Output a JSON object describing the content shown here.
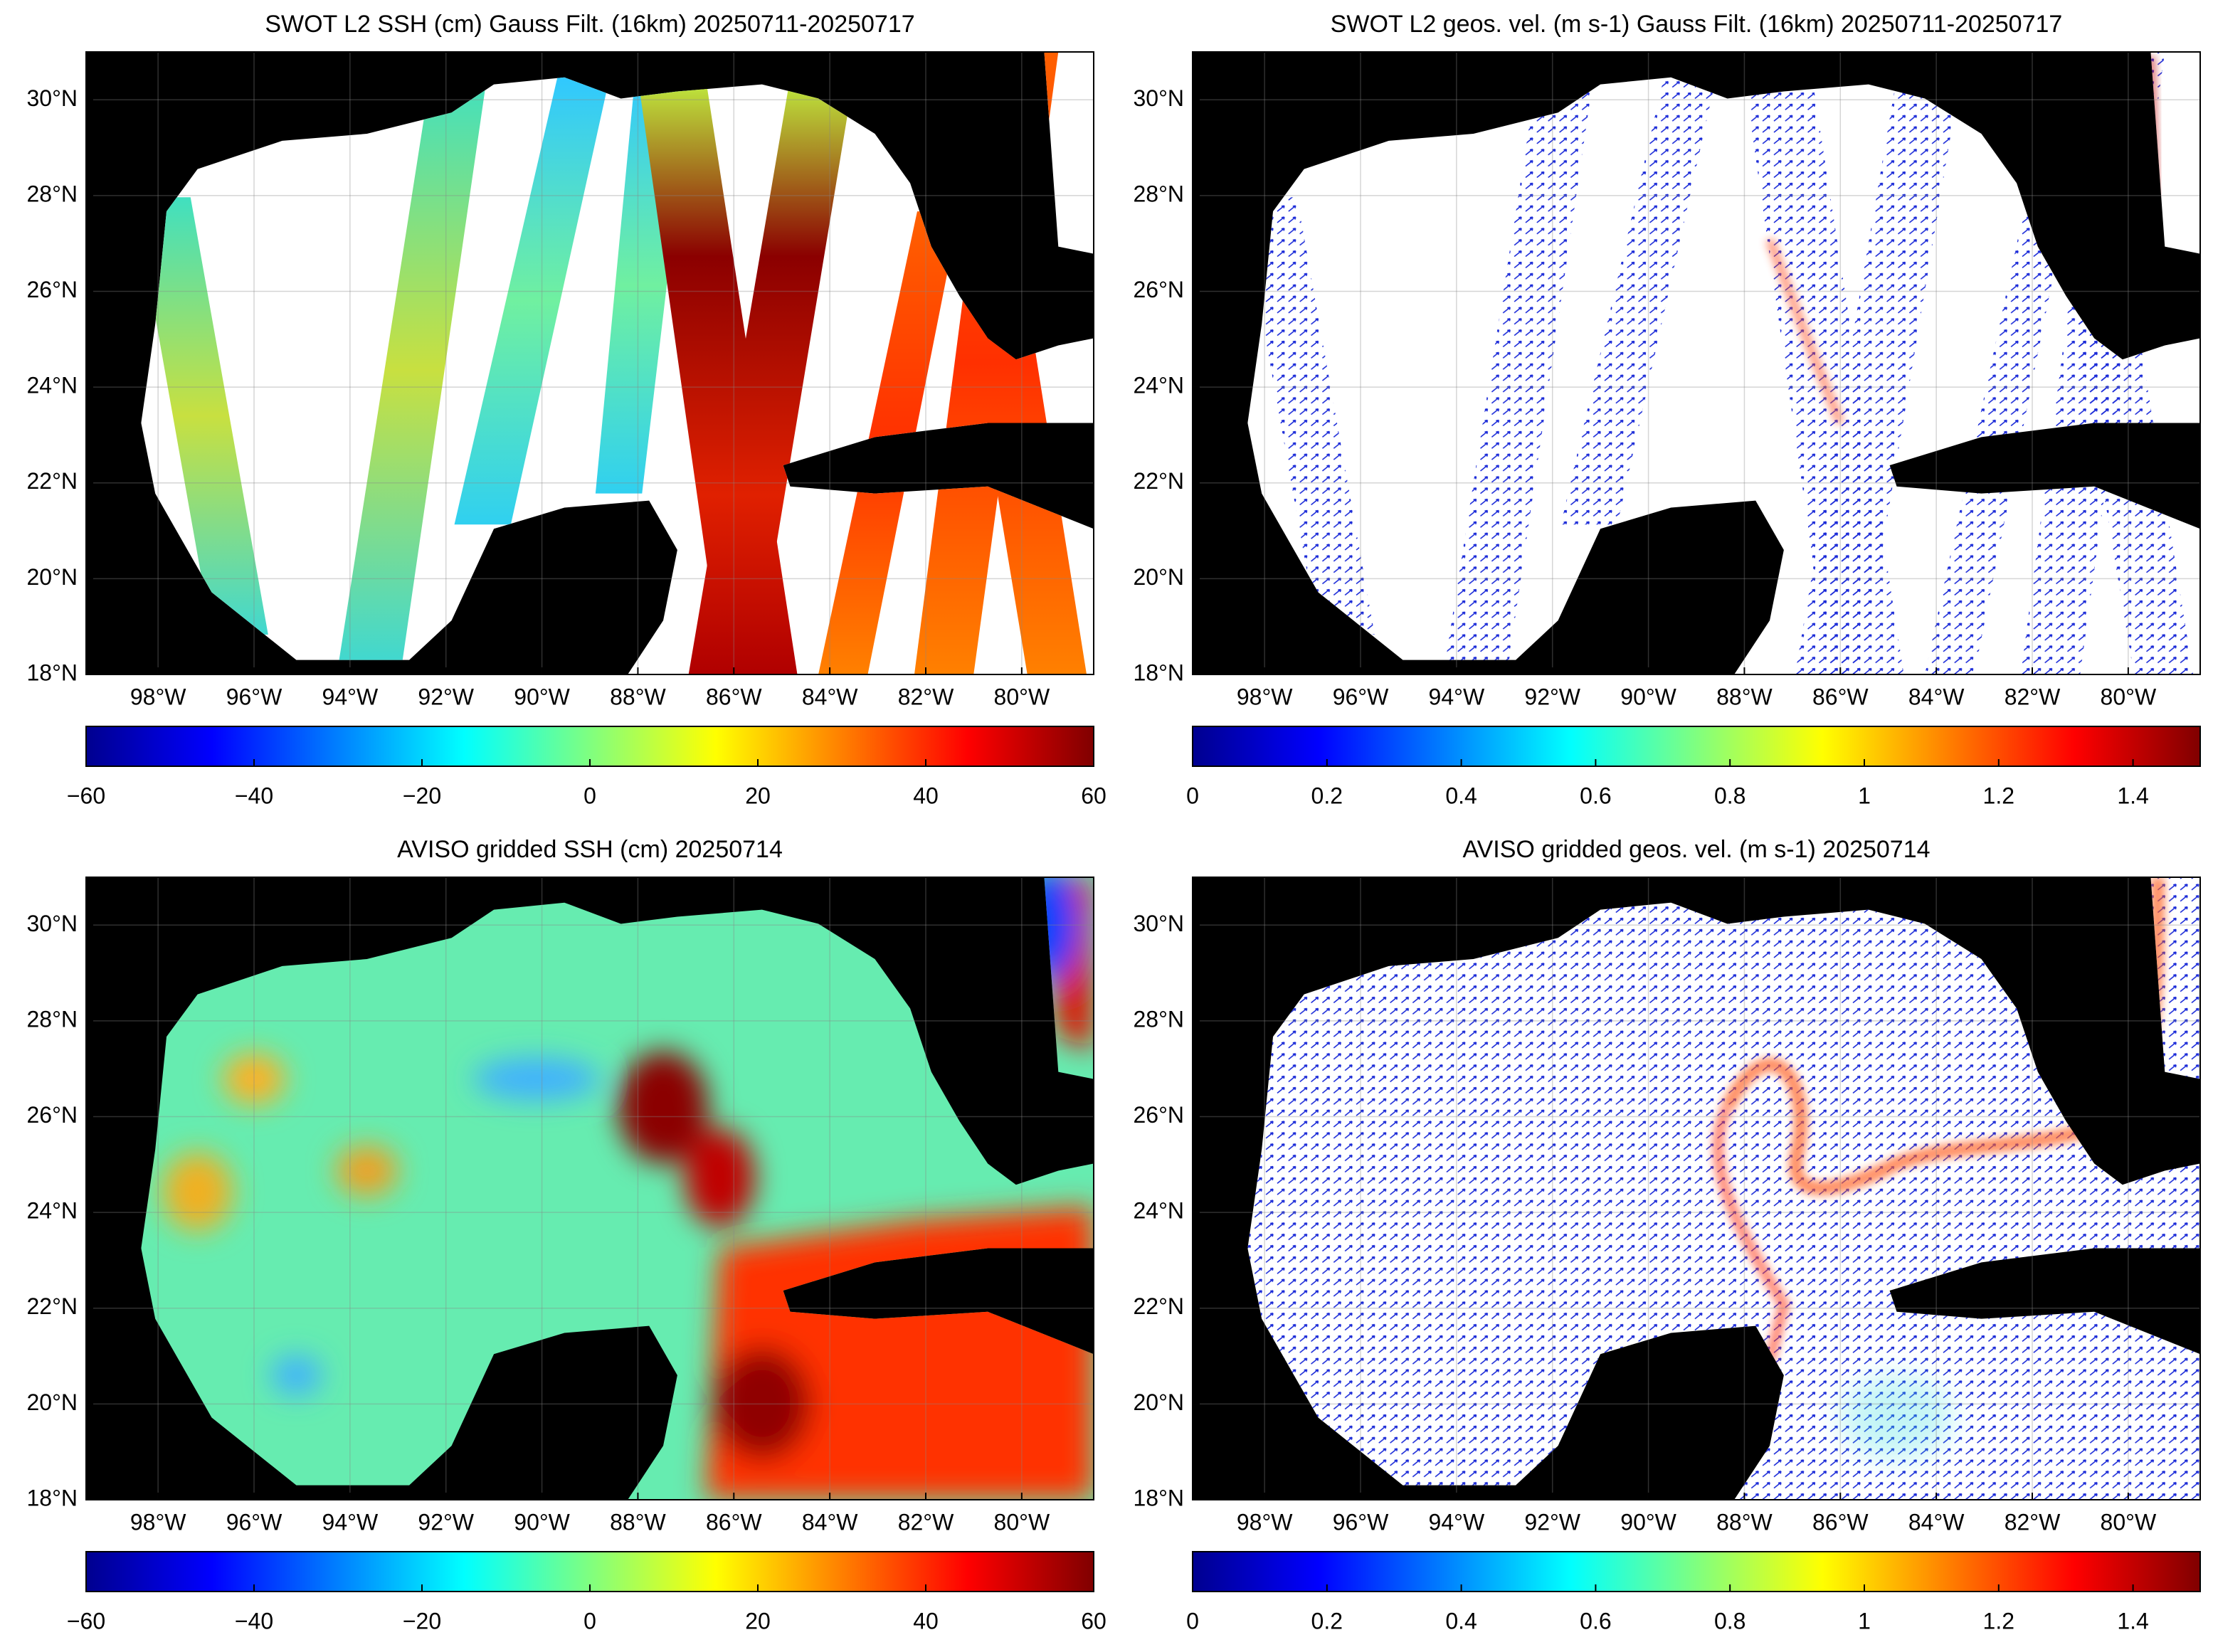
{
  "map": {
    "lon_range": [
      -99.5,
      -78.5
    ],
    "lat_range": [
      18,
      31
    ],
    "lon_ticks": [
      {
        "value": -98,
        "label": "98°W"
      },
      {
        "value": -96,
        "label": "96°W"
      },
      {
        "value": -94,
        "label": "94°W"
      },
      {
        "value": -92,
        "label": "92°W"
      },
      {
        "value": -90,
        "label": "90°W"
      },
      {
        "value": -88,
        "label": "88°W"
      },
      {
        "value": -86,
        "label": "86°W"
      },
      {
        "value": -84,
        "label": "84°W"
      },
      {
        "value": -82,
        "label": "82°W"
      },
      {
        "value": -80,
        "label": "80°W"
      }
    ],
    "lat_ticks": [
      {
        "value": 18,
        "label": "18°N"
      },
      {
        "value": 20,
        "label": "20°N"
      },
      {
        "value": 22,
        "label": "22°N"
      },
      {
        "value": 24,
        "label": "24°N"
      },
      {
        "value": 26,
        "label": "26°N"
      },
      {
        "value": 28,
        "label": "28°N"
      },
      {
        "value": 30,
        "label": "30°N"
      }
    ]
  },
  "panels": [
    {
      "title": "SWOT L2 SSH (cm) Gauss Filt. (16km) 20250711-20250717",
      "colorbar": {
        "range": [
          -60,
          60
        ],
        "ticks": [
          {
            "value": -60,
            "label": "−60"
          },
          {
            "value": -40,
            "label": "−40"
          },
          {
            "value": -20,
            "label": "−20"
          },
          0,
          20,
          40,
          60
        ]
      }
    },
    {
      "title": "SWOT L2 geos. vel. (m s-1) Gauss Filt. (16km) 20250711-20250717",
      "colorbar": {
        "range": [
          0,
          1.5
        ],
        "ticks": [
          0,
          0.2,
          0.4,
          0.6,
          0.8,
          1,
          1.2,
          1.4
        ]
      }
    },
    {
      "title": "AVISO gridded SSH (cm) 20250714",
      "colorbar": {
        "range": [
          -60,
          60
        ],
        "ticks": [
          {
            "value": -60,
            "label": "−60"
          },
          {
            "value": -40,
            "label": "−40"
          },
          {
            "value": -20,
            "label": "−20"
          },
          0,
          20,
          40,
          60
        ]
      }
    },
    {
      "title": "AVISO gridded geos. vel. (m s-1)  20250714",
      "colorbar": {
        "range": [
          0,
          1.5
        ],
        "ticks": [
          0,
          0.2,
          0.4,
          0.6,
          0.8,
          1,
          1.2,
          1.4
        ]
      }
    }
  ]
}
